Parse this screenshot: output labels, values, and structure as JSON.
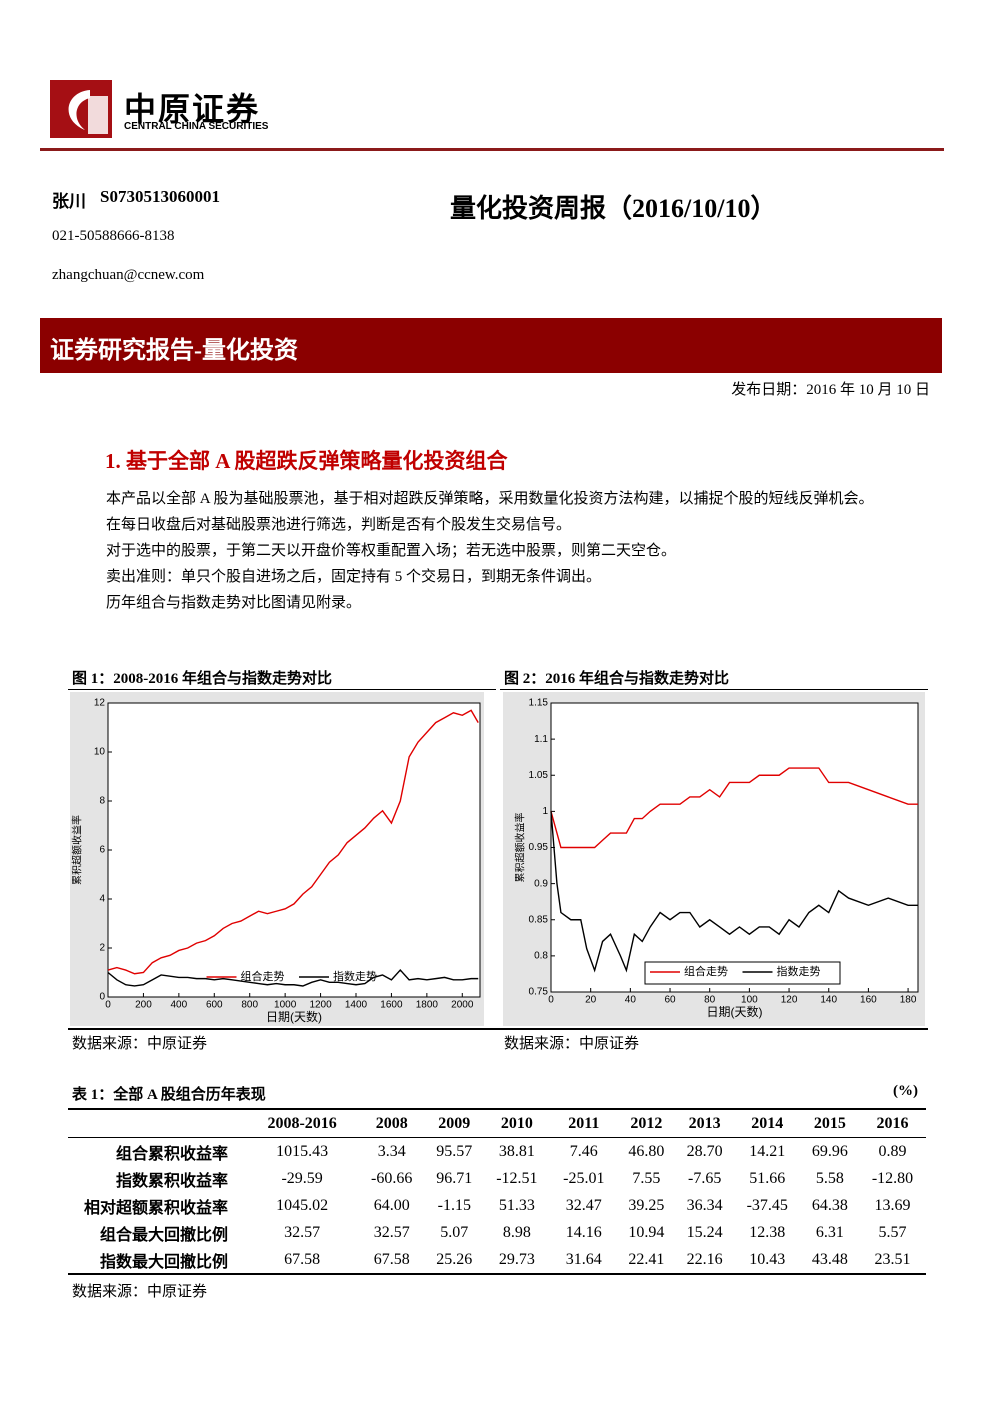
{
  "header": {
    "logo_cn": "中原证券",
    "logo_en": "CENTRAL CHINA SECURITIES"
  },
  "author": {
    "name": "张川",
    "id": "S0730513060001",
    "phone": "021-50588666-8138",
    "email": "zhangchuan@ccnew.com"
  },
  "title": "量化投资周报（2016/10/10）",
  "banner": "证券研究报告-量化投资",
  "date": "发布日期：2016 年 10 月 10 日",
  "section": {
    "heading": "1. 基于全部 A 股超跌反弹策略量化投资组合",
    "paragraphs": [
      "本产品以全部 A 股为基础股票池，基于相对超跌反弹策略，采用数量化投资方法构建，以捕捉个股的短线反弹机会。",
      "在每日收盘后对基础股票池进行筛选，判断是否有个股发生交易信号。",
      "对于选中的股票，于第二天以开盘价等权重配置入场；若无选中股票，则第二天空仓。",
      "卖出准则：单只个股自进场之后，固定持有 5 个交易日，到期无条件调出。",
      "历年组合与指数走势对比图请见附录。"
    ]
  },
  "chart_data": [
    {
      "type": "line",
      "title": "图 1：2008-2016 年组合与指数走势对比",
      "source": "数据来源：中原证券",
      "x_label": "日期(天数)",
      "y_label": "累积超额收益率",
      "legend": "lower center",
      "x": [
        0,
        50,
        100,
        150,
        200,
        250,
        300,
        350,
        400,
        450,
        500,
        550,
        600,
        650,
        700,
        750,
        800,
        850,
        900,
        950,
        1000,
        1050,
        1100,
        1150,
        1200,
        1250,
        1300,
        1350,
        1400,
        1450,
        1500,
        1550,
        1600,
        1650,
        1700,
        1750,
        1800,
        1850,
        1900,
        1950,
        2000,
        2050,
        2090
      ],
      "series": [
        {
          "name": "组合走势",
          "color": "#e00000",
          "values": [
            1.1,
            1.2,
            1.1,
            0.95,
            1.0,
            1.4,
            1.6,
            1.7,
            1.9,
            2.0,
            2.2,
            2.3,
            2.5,
            2.8,
            3.0,
            3.1,
            3.3,
            3.5,
            3.4,
            3.5,
            3.6,
            3.8,
            4.2,
            4.5,
            5.0,
            5.5,
            5.8,
            6.3,
            6.6,
            6.9,
            7.3,
            7.6,
            7.1,
            8.0,
            9.8,
            10.4,
            10.8,
            11.2,
            11.4,
            11.6,
            11.5,
            11.7,
            11.2
          ]
        },
        {
          "name": "指数走势",
          "color": "#000000",
          "values": [
            1.0,
            0.7,
            0.5,
            0.45,
            0.5,
            0.7,
            0.9,
            0.85,
            0.8,
            0.8,
            0.75,
            0.75,
            0.7,
            0.75,
            0.7,
            0.65,
            0.6,
            0.55,
            0.5,
            0.55,
            0.5,
            0.5,
            0.45,
            0.6,
            0.7,
            0.6,
            0.6,
            0.55,
            0.5,
            0.55,
            0.8,
            0.9,
            0.7,
            1.1,
            0.7,
            0.75,
            0.7,
            0.75,
            0.8,
            0.7,
            0.7,
            0.75,
            0.75
          ]
        }
      ],
      "xlim": [
        0,
        2100
      ],
      "xticks": [
        0,
        200,
        400,
        600,
        800,
        1000,
        1200,
        1400,
        1600,
        1800,
        2000
      ],
      "ylim": [
        0,
        12
      ],
      "yticks": [
        0,
        2,
        4,
        6,
        8,
        10,
        12
      ]
    },
    {
      "type": "line",
      "title": "图 2：2016 年组合与指数走势对比",
      "source": "数据来源：中原证券",
      "x_label": "日期(天数)",
      "y_label": "累积超额收益率",
      "legend": "lower right",
      "x": [
        0,
        3,
        5,
        10,
        15,
        18,
        22,
        26,
        30,
        35,
        38,
        42,
        46,
        50,
        55,
        60,
        65,
        70,
        75,
        80,
        85,
        90,
        95,
        100,
        105,
        110,
        115,
        120,
        125,
        130,
        135,
        140,
        145,
        150,
        160,
        170,
        180,
        185
      ],
      "series": [
        {
          "name": "组合走势",
          "color": "#e00000",
          "values": [
            1.0,
            0.97,
            0.95,
            0.95,
            0.95,
            0.95,
            0.95,
            0.96,
            0.97,
            0.97,
            0.97,
            0.99,
            0.99,
            1.0,
            1.01,
            1.01,
            1.01,
            1.02,
            1.02,
            1.03,
            1.02,
            1.04,
            1.04,
            1.04,
            1.05,
            1.05,
            1.05,
            1.06,
            1.06,
            1.06,
            1.06,
            1.04,
            1.04,
            1.04,
            1.03,
            1.02,
            1.01,
            1.01
          ]
        },
        {
          "name": "指数走势",
          "color": "#000000",
          "values": [
            1.0,
            0.9,
            0.86,
            0.85,
            0.85,
            0.81,
            0.78,
            0.82,
            0.83,
            0.8,
            0.78,
            0.83,
            0.82,
            0.84,
            0.86,
            0.85,
            0.86,
            0.86,
            0.84,
            0.85,
            0.84,
            0.83,
            0.84,
            0.83,
            0.84,
            0.84,
            0.83,
            0.85,
            0.84,
            0.86,
            0.87,
            0.86,
            0.89,
            0.88,
            0.87,
            0.88,
            0.87,
            0.87
          ]
        }
      ],
      "xlim": [
        0,
        185
      ],
      "xticks": [
        0,
        20,
        40,
        60,
        80,
        100,
        120,
        140,
        160,
        180
      ],
      "ylim": [
        0.75,
        1.15
      ],
      "yticks": [
        0.75,
        0.8,
        0.85,
        0.9,
        0.95,
        1,
        1.05,
        1.1,
        1.15
      ]
    }
  ],
  "table": {
    "title": "表 1：全部 A 股组合历年表现",
    "unit": "(%)",
    "columns": [
      "2008-2016",
      "2008",
      "2009",
      "2010",
      "2011",
      "2012",
      "2013",
      "2014",
      "2015",
      "2016"
    ],
    "rows": [
      {
        "label": "组合累积收益率",
        "values": [
          "1015.43",
          "3.34",
          "95.57",
          "38.81",
          "7.46",
          "46.80",
          "28.70",
          "14.21",
          "69.96",
          "0.89"
        ]
      },
      {
        "label": "指数累积收益率",
        "values": [
          "-29.59",
          "-60.66",
          "96.71",
          "-12.51",
          "-25.01",
          "7.55",
          "-7.65",
          "51.66",
          "5.58",
          "-12.80"
        ]
      },
      {
        "label": "相对超额累积收益率",
        "values": [
          "1045.02",
          "64.00",
          "-1.15",
          "51.33",
          "32.47",
          "39.25",
          "36.34",
          "-37.45",
          "64.38",
          "13.69"
        ]
      },
      {
        "label": "组合最大回撤比例",
        "values": [
          "32.57",
          "32.57",
          "5.07",
          "8.98",
          "14.16",
          "10.94",
          "15.24",
          "12.38",
          "6.31",
          "5.57"
        ]
      },
      {
        "label": "指数最大回撤比例",
        "values": [
          "67.58",
          "67.58",
          "25.26",
          "29.73",
          "31.64",
          "22.41",
          "22.16",
          "10.43",
          "43.48",
          "23.51"
        ]
      }
    ],
    "source": "数据来源：中原证券"
  }
}
